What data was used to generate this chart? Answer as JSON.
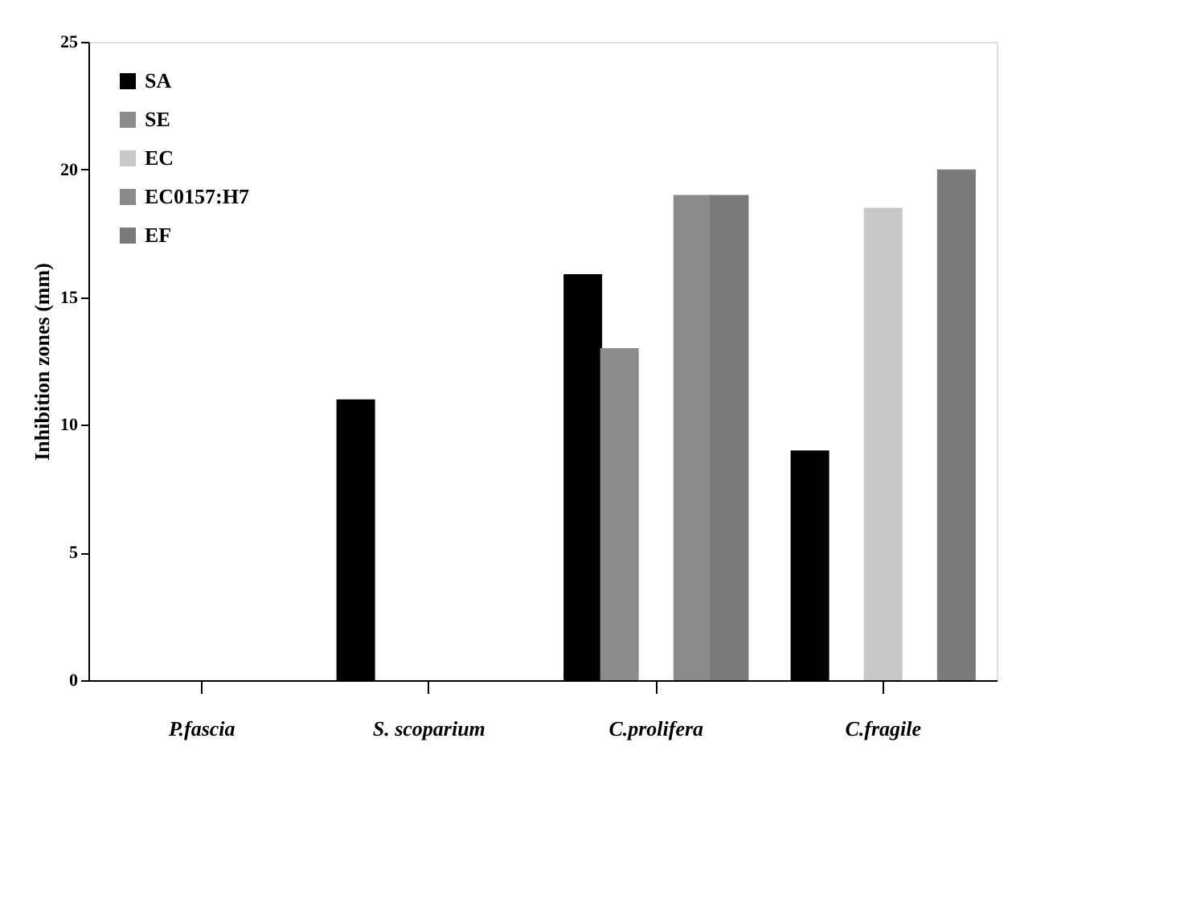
{
  "chart_data": {
    "type": "bar",
    "ylabel": "Inhibition zones (mm)",
    "categories": [
      "P.fascia",
      "S. scoparium",
      "C.prolifera",
      "C.fragile"
    ],
    "series": [
      {
        "name": "SA",
        "color": "#000000",
        "values": [
          null,
          11,
          15.9,
          9
        ]
      },
      {
        "name": "SE",
        "color": "#8c8c8c",
        "values": [
          null,
          null,
          13,
          null
        ]
      },
      {
        "name": "EC",
        "color": "#c8c8c8",
        "values": [
          null,
          null,
          null,
          18.5
        ]
      },
      {
        "name": "EC0157:H7",
        "color": "#8a8a8a",
        "values": [
          null,
          null,
          19,
          null
        ]
      },
      {
        "name": "EF",
        "color": "#7a7a7a",
        "values": [
          null,
          null,
          19,
          20
        ]
      }
    ],
    "ylim": [
      0,
      25
    ],
    "yticks": [
      0,
      5,
      10,
      15,
      20,
      25
    ],
    "grid": false,
    "legend": "top left"
  }
}
